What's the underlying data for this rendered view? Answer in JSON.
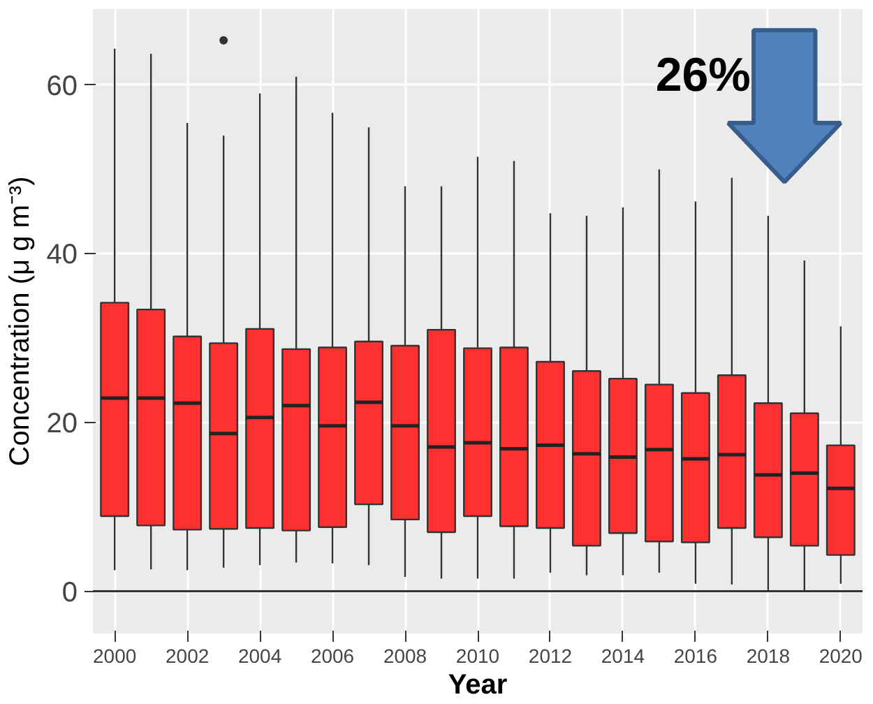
{
  "chart_data": {
    "type": "box",
    "xlabel": "Year",
    "ylabel": "Concentration (μ g m⁻³)",
    "x": [
      2000,
      2001,
      2002,
      2003,
      2004,
      2005,
      2006,
      2007,
      2008,
      2009,
      2010,
      2011,
      2012,
      2013,
      2014,
      2015,
      2016,
      2017,
      2018,
      2019,
      2020
    ],
    "color": "#ff3030",
    "boxes": [
      {
        "low": 2.5,
        "q1": 8.9,
        "median": 22.9,
        "q3": 34.2,
        "high": 64.3
      },
      {
        "low": 2.6,
        "q1": 7.8,
        "median": 22.9,
        "q3": 33.4,
        "high": 63.7
      },
      {
        "low": 2.5,
        "q1": 7.3,
        "median": 22.3,
        "q3": 30.2,
        "high": 55.5
      },
      {
        "low": 2.8,
        "q1": 7.4,
        "median": 18.7,
        "q3": 29.4,
        "high": 54,
        "outliers": [
          65.3
        ]
      },
      {
        "low": 3.1,
        "q1": 7.5,
        "median": 20.6,
        "q3": 31.1,
        "high": 59
      },
      {
        "low": 3.4,
        "q1": 7.2,
        "median": 22,
        "q3": 28.7,
        "high": 61
      },
      {
        "low": 3.3,
        "q1": 7.6,
        "median": 19.6,
        "q3": 28.9,
        "high": 56.7
      },
      {
        "low": 3.1,
        "q1": 10.3,
        "median": 22.4,
        "q3": 29.6,
        "high": 55
      },
      {
        "low": 1.7,
        "q1": 8.5,
        "median": 19.6,
        "q3": 29.1,
        "high": 48
      },
      {
        "low": 1.5,
        "q1": 7,
        "median": 17.1,
        "q3": 31,
        "high": 48
      },
      {
        "low": 1.5,
        "q1": 8.9,
        "median": 17.6,
        "q3": 28.8,
        "high": 51.5
      },
      {
        "low": 1.5,
        "q1": 7.7,
        "median": 16.9,
        "q3": 28.9,
        "high": 51
      },
      {
        "low": 2.2,
        "q1": 7.5,
        "median": 17.3,
        "q3": 27.2,
        "high": 44.8
      },
      {
        "low": 1.9,
        "q1": 5.4,
        "median": 16.3,
        "q3": 26.1,
        "high": 44.5
      },
      {
        "low": 1.9,
        "q1": 6.9,
        "median": 15.9,
        "q3": 25.2,
        "high": 45.5
      },
      {
        "low": 2.2,
        "q1": 5.9,
        "median": 16.8,
        "q3": 24.5,
        "high": 50
      },
      {
        "low": 0.9,
        "q1": 5.8,
        "median": 15.7,
        "q3": 23.5,
        "high": 46.2
      },
      {
        "low": 0.8,
        "q1": 7.5,
        "median": 16.2,
        "q3": 25.6,
        "high": 49
      },
      {
        "low": 0.1,
        "q1": 6.4,
        "median": 13.8,
        "q3": 22.3,
        "high": 44.5
      },
      {
        "low": 0,
        "q1": 5.4,
        "median": 14,
        "q3": 21.1,
        "high": 39.2
      },
      {
        "low": 0.9,
        "q1": 4.3,
        "median": 12.2,
        "q3": 17.3,
        "high": 31.4
      }
    ],
    "xlim": [
      1999.4,
      2020.6
    ],
    "xticks": [
      2000,
      2002,
      2004,
      2006,
      2008,
      2010,
      2012,
      2014,
      2016,
      2018,
      2020
    ],
    "ylim": [
      -5,
      69
    ],
    "yticks": [
      0,
      20,
      40,
      60
    ],
    "grid": true,
    "ref_lines": [
      {
        "axis": "y",
        "value": 0,
        "color": "#333333"
      }
    ],
    "annotations": [
      {
        "text": "26%"
      }
    ]
  }
}
